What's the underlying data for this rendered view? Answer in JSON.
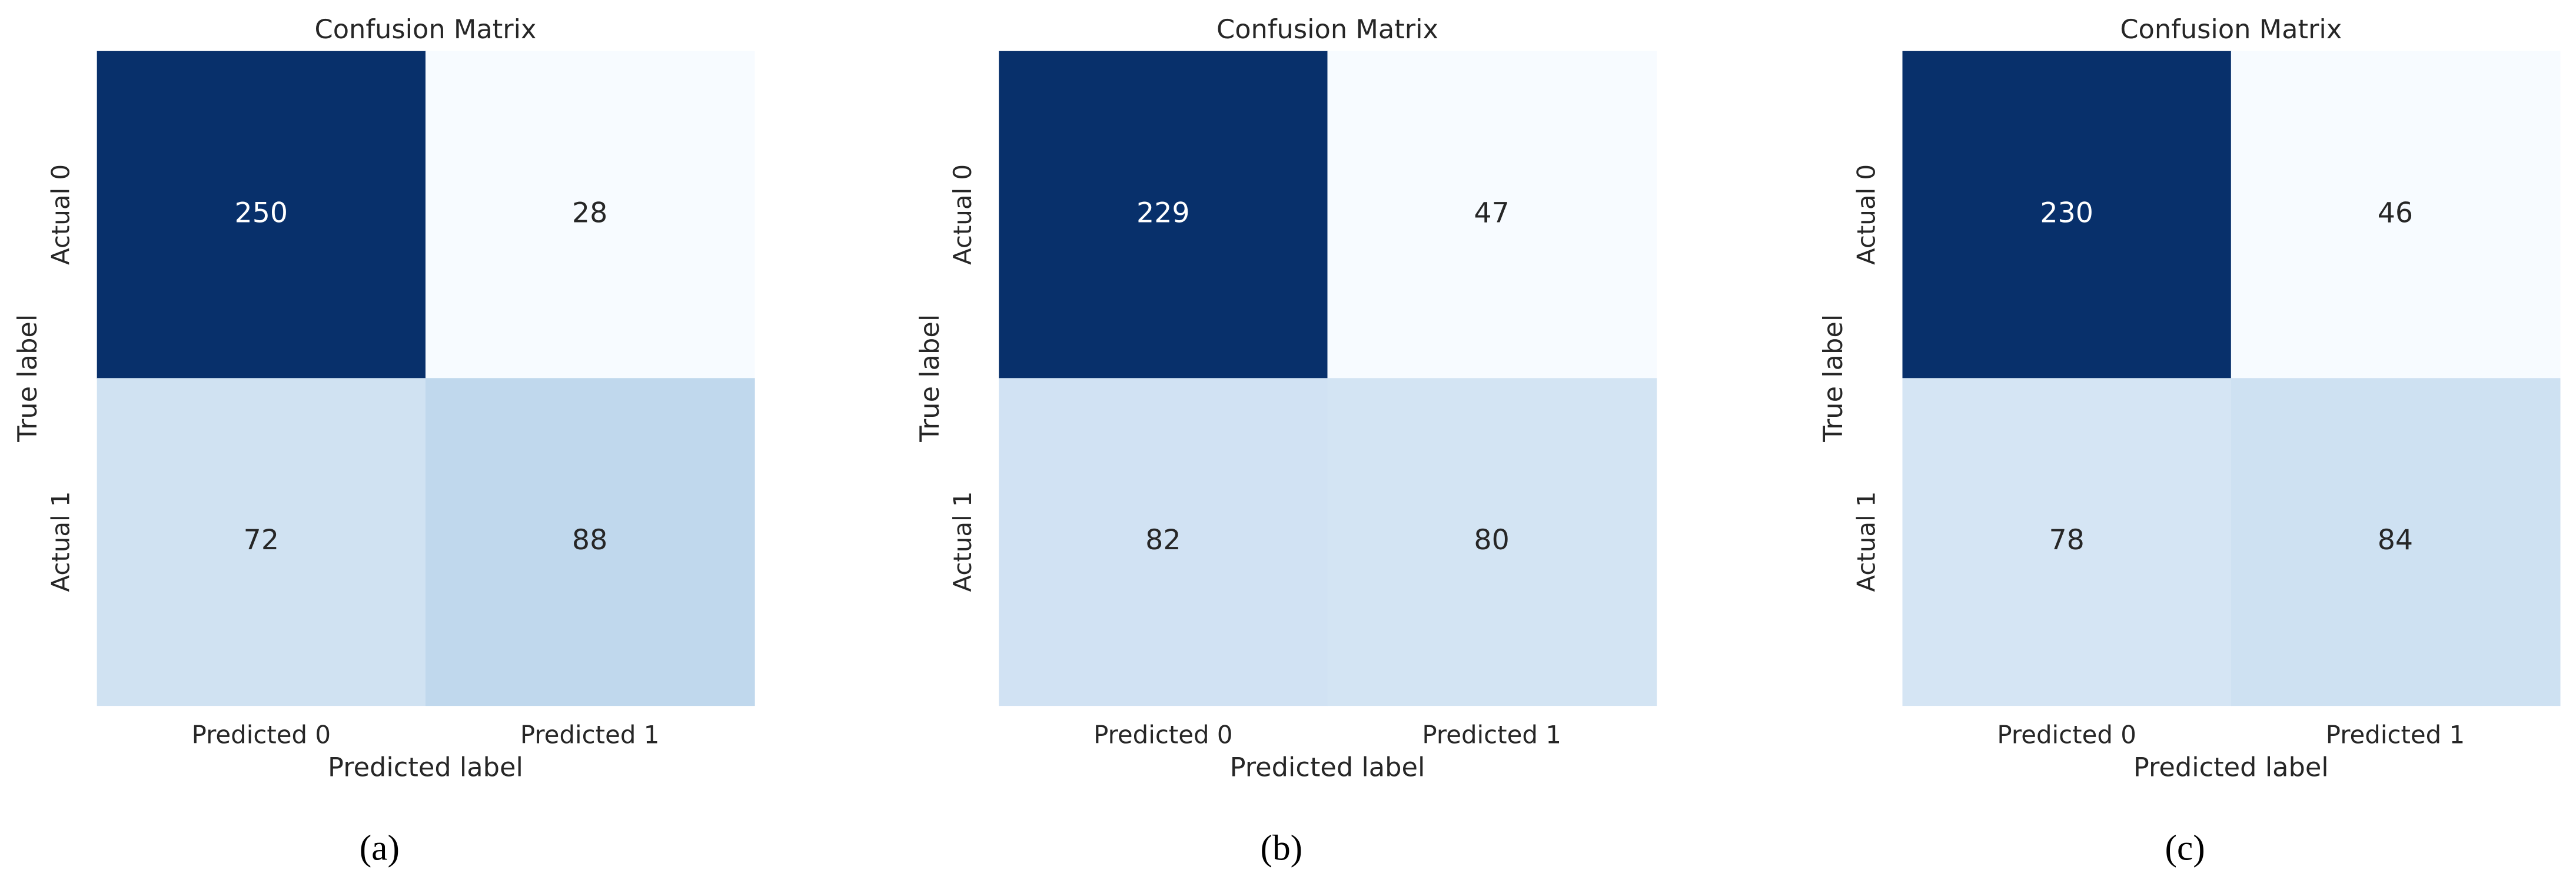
{
  "chart_data": [
    {
      "type": "heatmap",
      "title": "Confusion Matrix",
      "xlabel": "Predicted label",
      "ylabel": "True label",
      "x_categories": [
        "Predicted 0",
        "Predicted 1"
      ],
      "y_categories": [
        "Actual 0",
        "Actual 1"
      ],
      "values": [
        [
          250,
          28
        ],
        [
          72,
          88
        ]
      ],
      "colormap": "Blues",
      "caption": "(a)"
    },
    {
      "type": "heatmap",
      "title": "Confusion Matrix",
      "xlabel": "Predicted label",
      "ylabel": "True label",
      "x_categories": [
        "Predicted 0",
        "Predicted 1"
      ],
      "y_categories": [
        "Actual 0",
        "Actual 1"
      ],
      "values": [
        [
          229,
          47
        ],
        [
          82,
          80
        ]
      ],
      "colormap": "Blues",
      "caption": "(b)"
    },
    {
      "type": "heatmap",
      "title": "Confusion Matrix",
      "xlabel": "Predicted label",
      "ylabel": "True label",
      "x_categories": [
        "Predicted 0",
        "Predicted 1"
      ],
      "y_categories": [
        "Actual 0",
        "Actual 1"
      ],
      "values": [
        [
          230,
          46
        ],
        [
          78,
          84
        ]
      ],
      "colormap": "Blues",
      "caption": "(c)"
    }
  ]
}
